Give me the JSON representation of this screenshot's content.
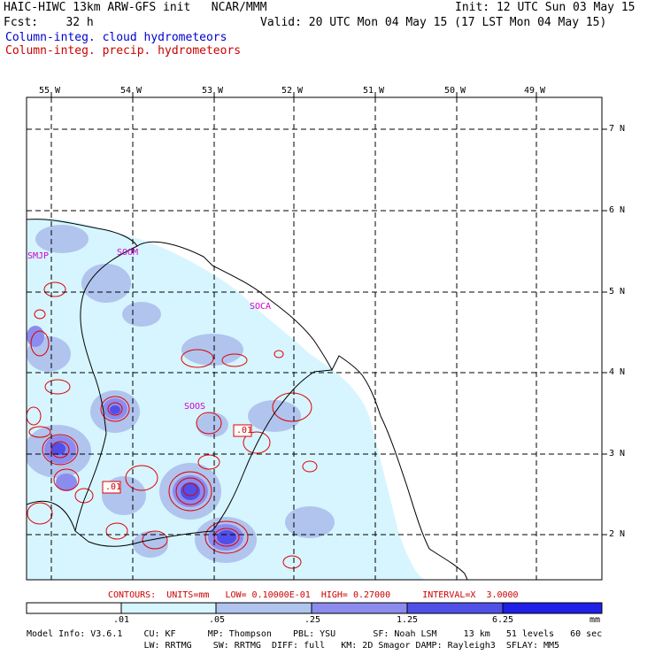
{
  "header": {
    "line1_left": "HAIC-HIWC 13km ARW-GFS init   NCAR/MMM",
    "line1_right": "Init: 12 UTC Sun 03 May 15",
    "fcst": "Fcst:    32 h",
    "valid": "Valid: 20 UTC Mon 04 May 15 (17 LST Mon 04 May 15)",
    "field1": "Column-integ. cloud hydrometeors",
    "field2": "Column-integ. precip. hydrometeors"
  },
  "map": {
    "lon_labels": [
      "55 W",
      "54 W",
      "53 W",
      "52 W",
      "51 W",
      "50 W",
      "49 W"
    ],
    "lat_labels": [
      "7 N",
      "6 N",
      "5 N",
      "4 N",
      "3 N",
      "2 N"
    ],
    "stations": [
      "SMJP",
      "SOOM",
      "SOCA",
      "SOOS"
    ],
    "contour_labels": [
      ".01",
      ".01"
    ]
  },
  "contours_note": "CONTOURS:  UNITS=mm   LOW= 0.10000E-01  HIGH= 0.27000      INTERVAL=X  3.0000",
  "colorbar": {
    "ticks": [
      ".01",
      ".05",
      ".25",
      "1.25",
      "6.25"
    ],
    "unit": "mm",
    "colors": [
      "#ffffff",
      "#d6f5ff",
      "#b0c4ee",
      "#8c8cee",
      "#5050e8",
      "#2020e8"
    ]
  },
  "model_info": {
    "line1": "Model Info: V3.6.1    CU: KF      MP: Thompson    PBL: YSU       SF: Noah LSM     13 km   51 levels   60 sec",
    "line2": "                      LW: RRTMG    SW: RRTMG  DIFF: full   KM: 2D Smagor DAMP: Rayleigh3  SFLAY: MM5"
  }
}
